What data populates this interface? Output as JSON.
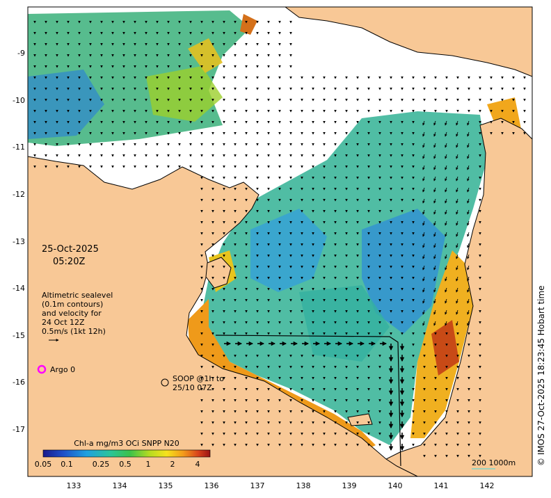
{
  "map": {
    "date": "25-Oct-2025",
    "time": "05:20Z",
    "legend_lines": [
      "Altimetric sealevel",
      "(0.1m contours)",
      "and velocity for",
      "24 Oct 12Z",
      "0.5m/s (1kt 12h)"
    ],
    "argo_label": "Argo 0",
    "soop_line1": "SOOP @1h to",
    "soop_line2": "25/10 07Z",
    "colorbar_title": "Chl-a mg/m3 OCi SNPP N20",
    "colorbar_ticks": [
      "0.05",
      "0.1",
      "0.25",
      "0.5",
      "1",
      "2",
      "4"
    ],
    "scale_label": "200  1000m",
    "credit": "© IMOS 27-Oct-2025 18:23:45 Hobart time",
    "lat_ticks": [
      "-9",
      "-10",
      "-11",
      "-12",
      "-13",
      "-14",
      "-15",
      "-16",
      "-17"
    ],
    "lon_ticks": [
      "133",
      "134",
      "135",
      "136",
      "137",
      "138",
      "139",
      "140",
      "141",
      "142"
    ],
    "colors": {
      "land": "#f8c896",
      "ocean_blank": "#ffffff",
      "argo": "#ff00ff",
      "coast": "#000000"
    }
  }
}
